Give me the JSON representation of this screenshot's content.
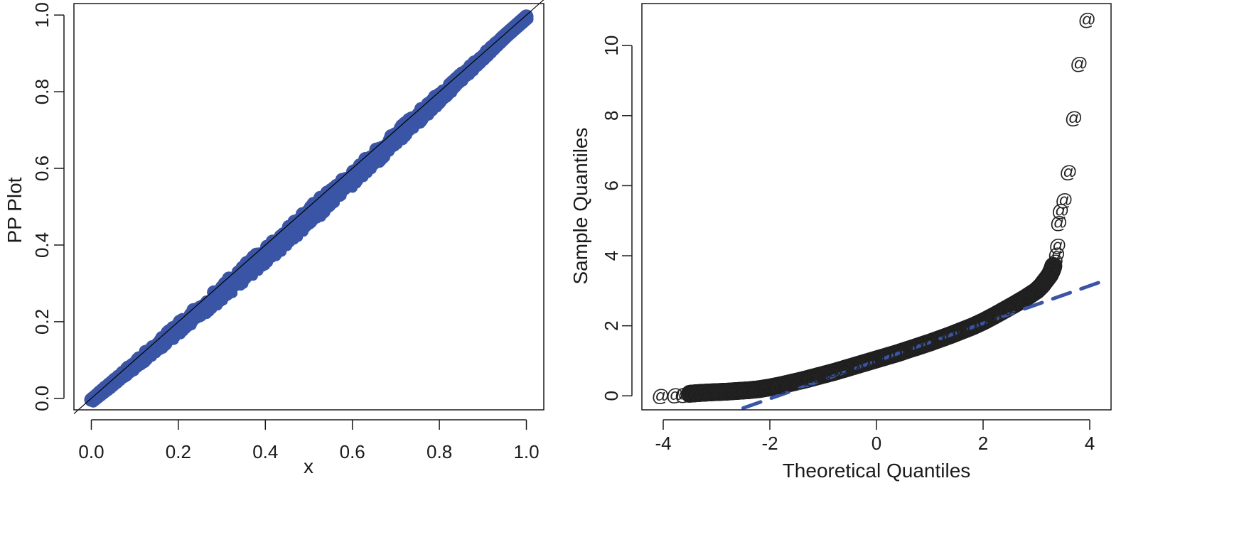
{
  "chart_data": [
    {
      "type": "scatter",
      "xlabel": "x",
      "ylabel": "PP Plot",
      "xlim": [
        -0.04,
        1.04
      ],
      "ylim": [
        -0.03,
        1.03
      ],
      "xticks": [
        "0.0",
        "0.2",
        "0.4",
        "0.6",
        "0.8",
        "1.0"
      ],
      "yticks": [
        "0.0",
        "0.2",
        "0.4",
        "0.6",
        "0.8",
        "1.0"
      ],
      "reference_line": {
        "type": "abline",
        "intercept": 0,
        "slope": 1,
        "color": "#000000"
      },
      "point_color": "#3a55a5",
      "point_band": {
        "x_range": [
          0.0,
          1.0
        ],
        "y_range": [
          0.0,
          1.0
        ],
        "lower_deviation_max": 0.04
      },
      "grid": false
    },
    {
      "type": "scatter",
      "xlabel": "Theoretical Quantiles",
      "ylabel": "Sample Quantiles",
      "xlim": [
        -4.4,
        4.4
      ],
      "ylim": [
        -0.4,
        11.2
      ],
      "xticks": [
        "-4",
        "-2",
        "0",
        "2",
        "4"
      ],
      "yticks": [
        "0",
        "2",
        "4",
        "6",
        "8",
        "10"
      ],
      "point_symbol": "@",
      "point_color": "#222222",
      "qq_line": {
        "x": [
          -2.5,
          4.2
        ],
        "y": [
          -0.35,
          3.25
        ],
        "style": "dashed",
        "color": "#3a55a5"
      },
      "points": {
        "x": [
          -4.05,
          -3.78,
          -3.62,
          -3.5,
          -3.42,
          -3.33,
          -3.22,
          -3.1,
          -2.95,
          -2.8,
          -2.6,
          -2.4,
          -2.2,
          -2.0,
          -1.8,
          -1.6,
          -1.4,
          -1.2,
          -1.0,
          -0.8,
          -0.6,
          -0.4,
          -0.2,
          0.0,
          0.2,
          0.4,
          0.6,
          0.8,
          1.0,
          1.2,
          1.4,
          1.6,
          1.8,
          2.0,
          2.2,
          2.4,
          2.6,
          2.8,
          3.0,
          3.1,
          3.15,
          3.2,
          3.25,
          3.28,
          3.3,
          3.32,
          3.35,
          3.38,
          3.4,
          3.42,
          3.45,
          3.52,
          3.6,
          3.7,
          3.8,
          3.95
        ],
        "y": [
          0.02,
          0.04,
          0.05,
          0.06,
          0.07,
          0.08,
          0.09,
          0.1,
          0.11,
          0.12,
          0.14,
          0.16,
          0.19,
          0.24,
          0.3,
          0.37,
          0.44,
          0.52,
          0.6,
          0.68,
          0.77,
          0.86,
          0.95,
          1.04,
          1.13,
          1.22,
          1.32,
          1.42,
          1.52,
          1.63,
          1.74,
          1.86,
          1.98,
          2.12,
          2.28,
          2.45,
          2.62,
          2.8,
          3.0,
          3.15,
          3.25,
          3.35,
          3.45,
          3.55,
          3.62,
          3.72,
          3.85,
          4.05,
          4.3,
          4.95,
          5.3,
          5.6,
          6.4,
          7.95,
          9.5,
          10.75
        ]
      },
      "grid": false
    }
  ]
}
